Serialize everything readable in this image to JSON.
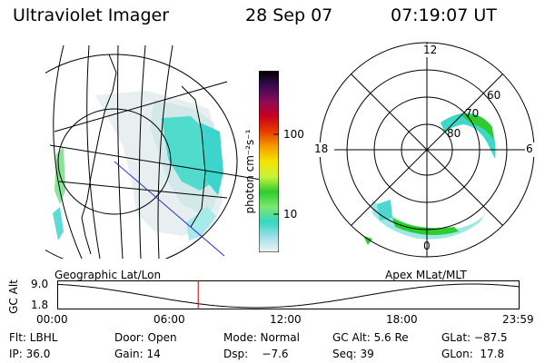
{
  "header": {
    "instrument": "Ultraviolet Imager",
    "date": "28 Sep 07",
    "time": "07:19:07 UT"
  },
  "geo_panel": {
    "label": "Geographic Lat/Lon"
  },
  "polar_panel": {
    "label": "Apex MLat/MLT",
    "mlt_labels": {
      "top": "12",
      "left": "18",
      "right": "6",
      "bottom": "0"
    },
    "lat_labels": [
      "60",
      "70",
      "80"
    ]
  },
  "colorbar": {
    "label": "photon cm⁻²s⁻¹",
    "ticks": [
      "100",
      "10"
    ],
    "colors": [
      "#f2f2f2",
      "#9fe0e8",
      "#36d6c3",
      "#7ae86e",
      "#2fcc2f",
      "#c8f23a",
      "#f5e400",
      "#f59b00",
      "#e83a00",
      "#c8001e",
      "#8a0a5a",
      "#3a0a50",
      "#000000"
    ]
  },
  "timeline": {
    "ylabel": "GC Alt",
    "yticks": [
      "9.0",
      "1.8"
    ],
    "xticks": [
      "00:00",
      "06:00",
      "12:00",
      "18:00",
      "23:59"
    ],
    "current_time_hours": 7.32
  },
  "info": {
    "flt": "Flt: LBHL",
    "door": "Door: Open",
    "mode": "Mode: Normal",
    "gc_alt": "GC Alt: 5.6 Re",
    "glat": "GLat: −87.5",
    "ip": "IP: 36.0",
    "gain": "Gain: 14",
    "dsp": "Dsp:    −7.6",
    "seq": "Seq: 39",
    "glon": "GLon:  17.8"
  }
}
